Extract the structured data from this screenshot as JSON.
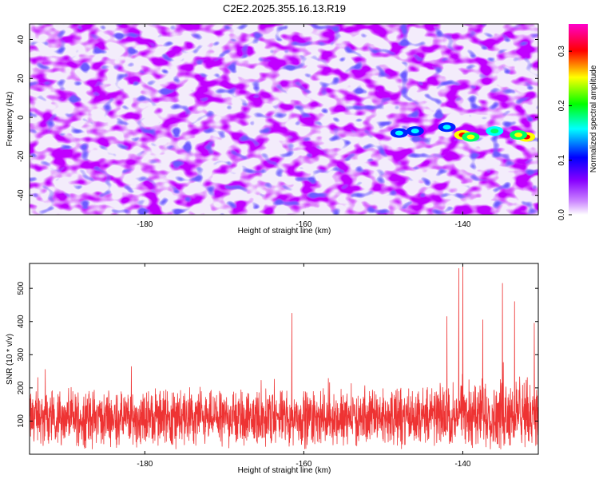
{
  "title": "C2E2.2025.355.16.13.R19",
  "chart_data": [
    {
      "type": "heatmap",
      "title": "C2E2.2025.355.16.13.R19",
      "xlabel": "Height of straight line (km)",
      "ylabel": "Frequency (Hz)",
      "xlim": [
        -194.5,
        -130.5
      ],
      "ylim": [
        -50,
        48
      ],
      "xticks": [
        -180,
        -160,
        -140
      ],
      "yticks": [
        -40,
        -20,
        0,
        20,
        40
      ],
      "colorbar": {
        "label": "Normalized spectral amplitude",
        "range": [
          0.0,
          0.35
        ],
        "ticks": [
          0.0,
          0.1,
          0.2,
          0.3
        ],
        "colormap": [
          "#ffffff",
          "#8800ff",
          "#0000ff",
          "#00ffff",
          "#00ff00",
          "#ffff00",
          "#ff0000",
          "#ff00cc"
        ]
      },
      "hotspots": [
        {
          "x": -140,
          "y": -9,
          "amplitude": 0.3
        },
        {
          "x": -139,
          "y": -10,
          "amplitude": 0.25
        },
        {
          "x": -132,
          "y": -10,
          "amplitude": 0.32
        },
        {
          "x": -133,
          "y": -9,
          "amplitude": 0.22
        },
        {
          "x": -136,
          "y": -7,
          "amplitude": 0.14
        },
        {
          "x": -142,
          "y": -5,
          "amplitude": 0.12
        },
        {
          "x": -146,
          "y": -7,
          "amplitude": 0.12
        },
        {
          "x": -148,
          "y": -8,
          "amplitude": 0.11
        }
      ],
      "grid": false
    },
    {
      "type": "line",
      "xlabel": "Height of straight line (km)",
      "ylabel": "SNR (10 * v/v)",
      "xlim": [
        -194.5,
        -130.5
      ],
      "ylim": [
        0,
        575
      ],
      "xticks": [
        -180,
        -160,
        -140
      ],
      "yticks": [
        100,
        200,
        300,
        400,
        500
      ],
      "color": "#ee3333",
      "peaks": [
        {
          "x": -140.5,
          "y": 560
        },
        {
          "x": -140.0,
          "y": 575
        },
        {
          "x": -135.0,
          "y": 515
        },
        {
          "x": -133.5,
          "y": 460
        },
        {
          "x": -161.5,
          "y": 425
        },
        {
          "x": -142.0,
          "y": 415
        },
        {
          "x": -137.5,
          "y": 405
        },
        {
          "x": -131.0,
          "y": 395
        }
      ],
      "typical_range": [
        40,
        240
      ],
      "grid": false
    }
  ]
}
